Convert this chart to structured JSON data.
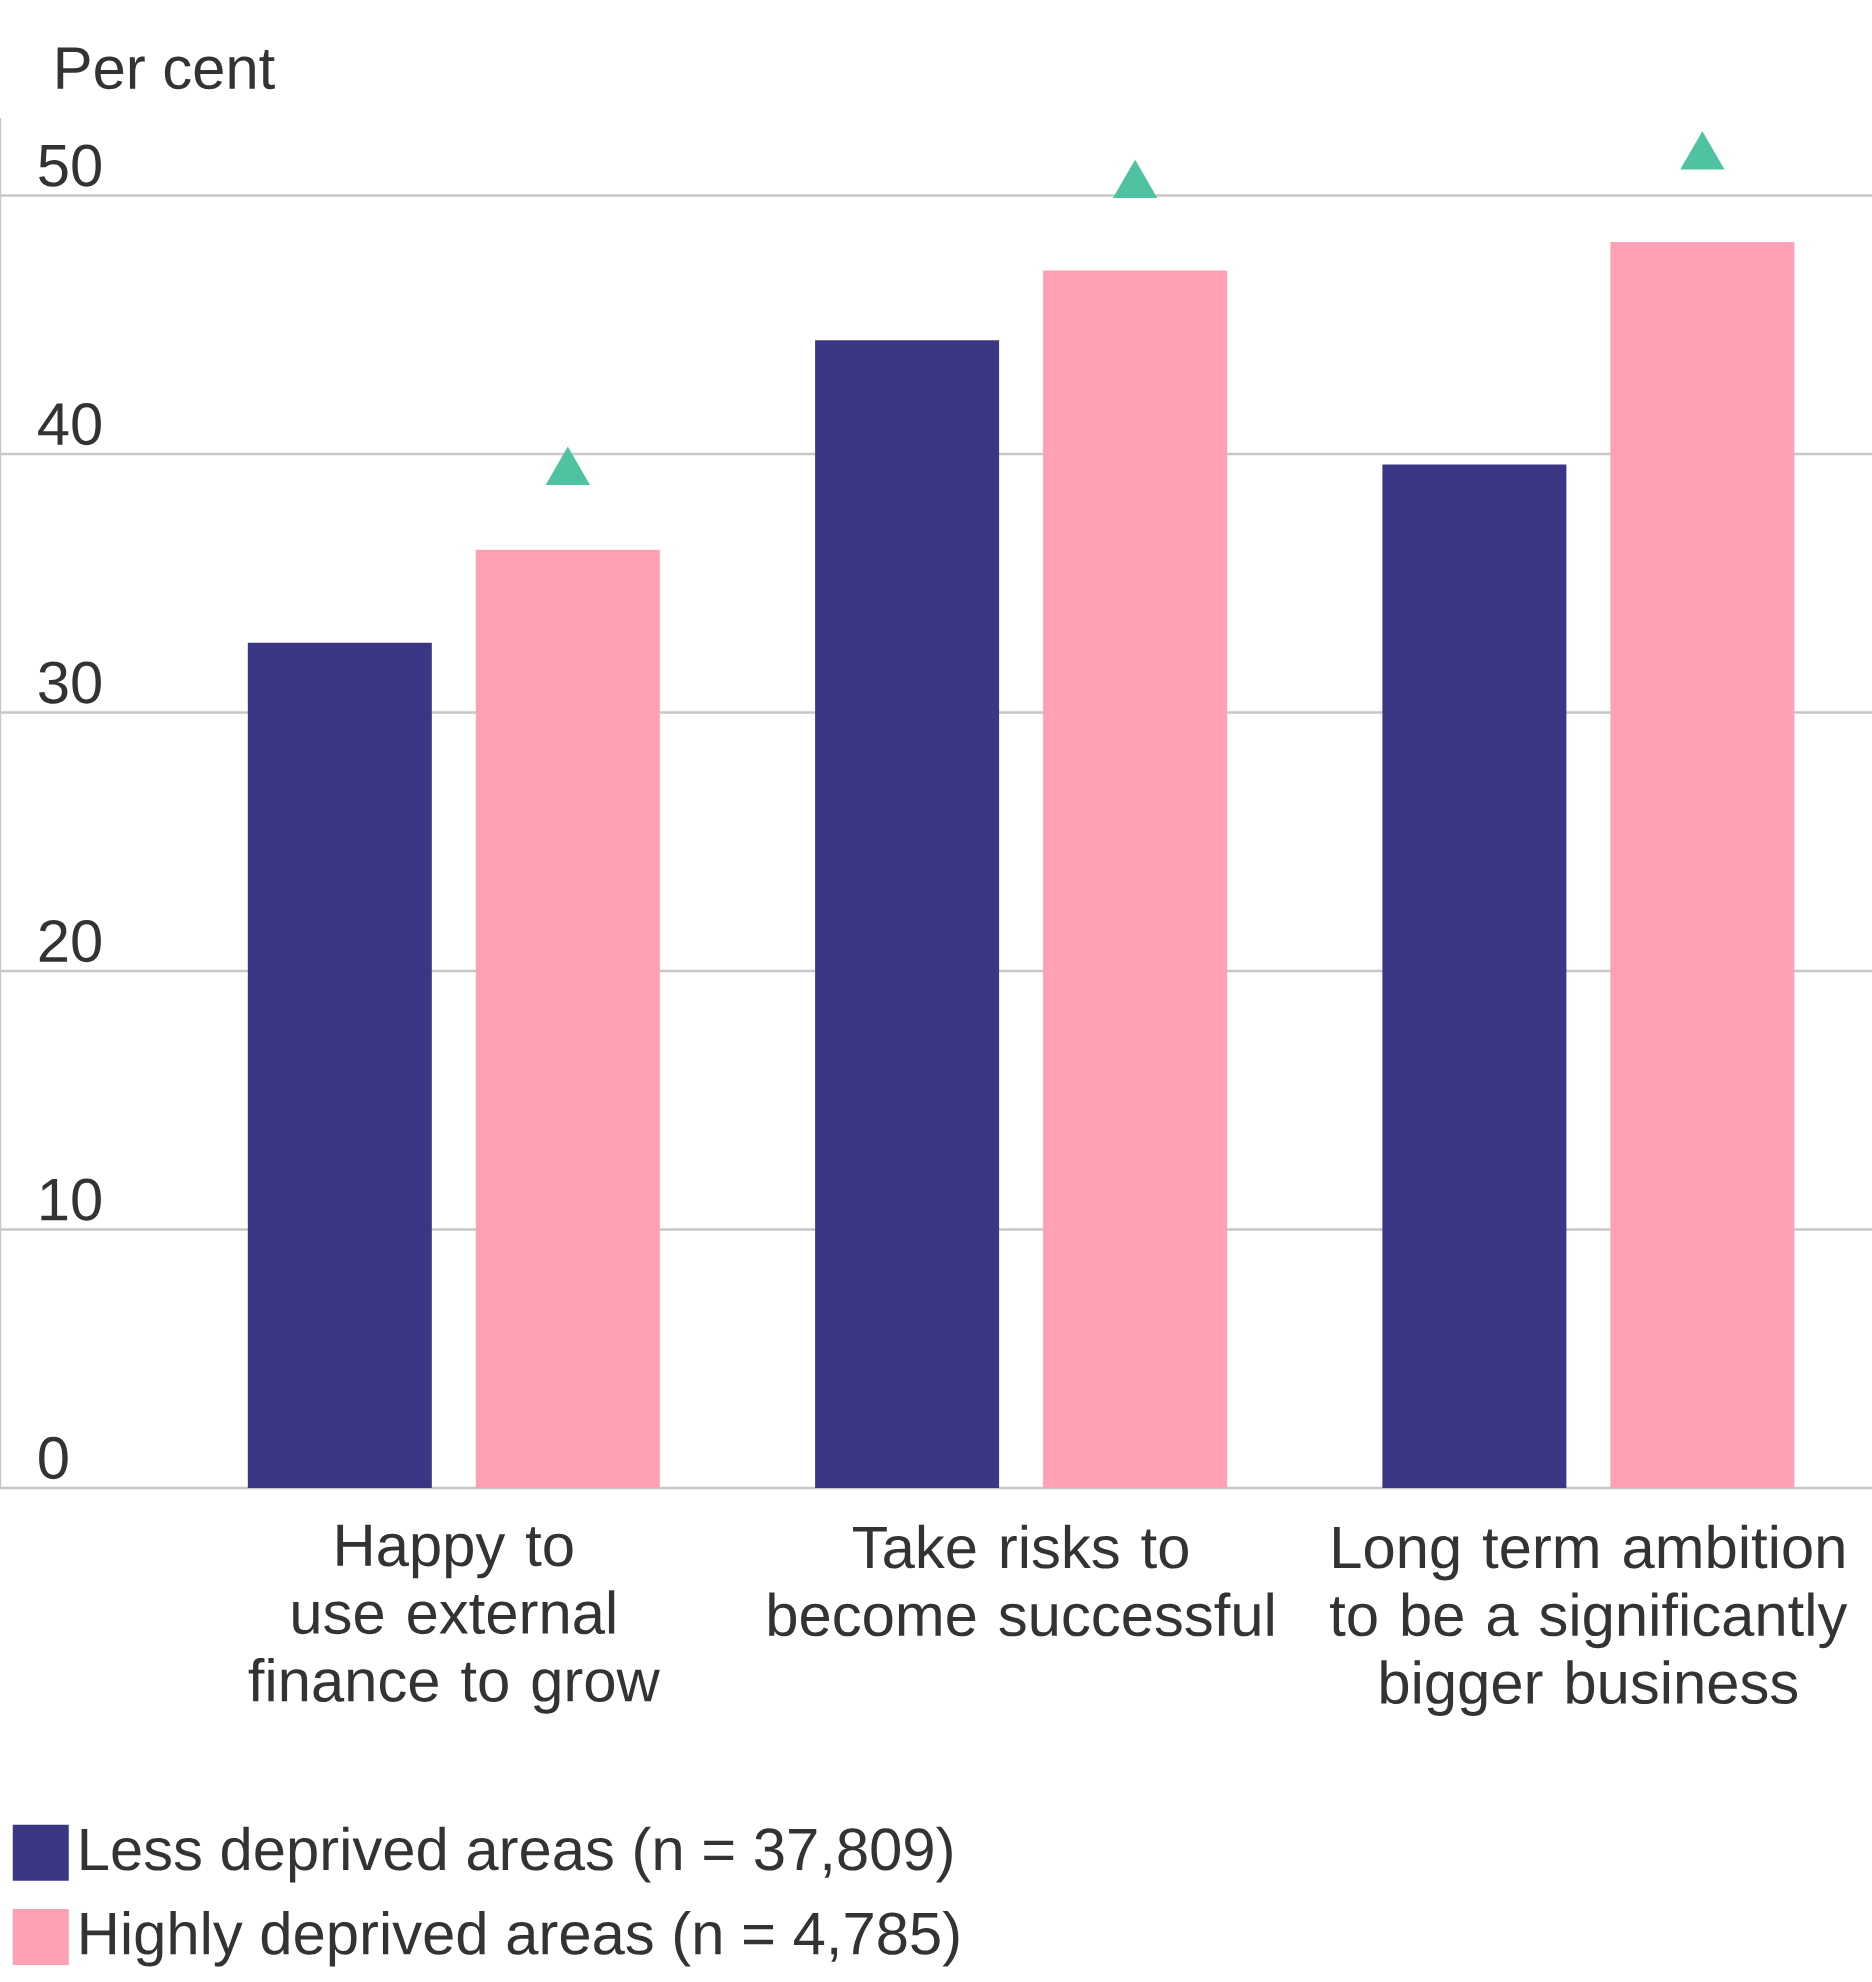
{
  "chart_data": {
    "type": "bar",
    "ylabel": "Per cent",
    "categories": [
      "Happy to use external finance to grow",
      "Take risks to become successful",
      "Long term ambition to be a significantly bigger business"
    ],
    "series": [
      {
        "name": "Less deprived areas (n = 37,809)",
        "color": "#3c3785",
        "values": [
          32.7,
          44.4,
          39.6
        ]
      },
      {
        "name": "Highly deprived areas (n = 4,785)",
        "color": "#ffa0b4",
        "values": [
          36.3,
          47.1,
          48.2
        ]
      },
      {
        "type": "scatter",
        "color": "#4fc3a1",
        "marker": "triangle",
        "x": [
          "Happy to use external finance to grow",
          "Take risks to become successful",
          "Long term ambition to be a significantly bigger business"
        ],
        "values": [
          39.3,
          50.4,
          51.5
        ]
      }
    ],
    "ylim": [
      0,
      53
    ],
    "yticks": [
      0,
      10,
      20,
      30,
      40,
      50
    ],
    "grid": "y",
    "legend": "bottom"
  }
}
